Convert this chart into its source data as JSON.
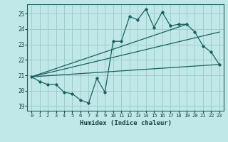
{
  "xlabel": "Humidex (Indice chaleur)",
  "bg_color": "#c0e8e8",
  "grid_color": "#a0cccc",
  "line_color": "#1a6060",
  "xlim": [
    -0.5,
    23.5
  ],
  "ylim": [
    18.7,
    25.6
  ],
  "yticks": [
    19,
    20,
    21,
    22,
    23,
    24,
    25
  ],
  "xticks": [
    0,
    1,
    2,
    3,
    4,
    5,
    6,
    7,
    8,
    9,
    10,
    11,
    12,
    13,
    14,
    15,
    16,
    17,
    18,
    19,
    20,
    21,
    22,
    23
  ],
  "series1_x": [
    0,
    1,
    2,
    3,
    4,
    5,
    6,
    7,
    8,
    9,
    10,
    11,
    12,
    13,
    14,
    15,
    16,
    17,
    18,
    19,
    20,
    21,
    22,
    23
  ],
  "series1_y": [
    20.9,
    20.6,
    20.4,
    20.4,
    19.9,
    19.8,
    19.4,
    19.2,
    20.8,
    19.9,
    23.2,
    23.2,
    24.8,
    24.6,
    25.3,
    24.1,
    25.1,
    24.2,
    24.3,
    24.3,
    23.8,
    22.9,
    22.5,
    21.7
  ],
  "line1_x": [
    0,
    23
  ],
  "line1_y": [
    20.9,
    21.7
  ],
  "line2_x": [
    0,
    23
  ],
  "line2_y": [
    20.9,
    23.8
  ],
  "line3_x": [
    0,
    19
  ],
  "line3_y": [
    20.9,
    24.3
  ]
}
